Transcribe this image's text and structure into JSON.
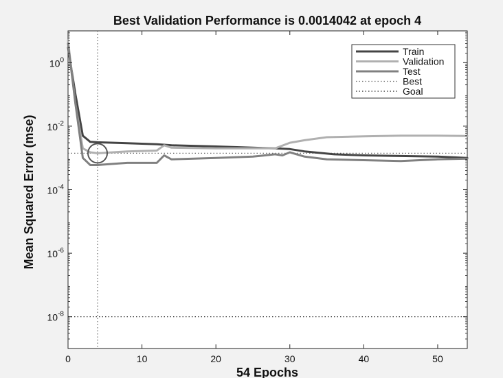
{
  "chart_data": {
    "type": "line",
    "title": "Best Validation Performance is 0.0014042 at epoch 4",
    "xlabel": "54 Epochs",
    "ylabel": "Mean Squared Error  (mse)",
    "xlim": [
      0,
      54
    ],
    "ylim": [
      1e-09,
      10
    ],
    "yscale": "log",
    "xticks": [
      0,
      10,
      20,
      30,
      40,
      50
    ],
    "yticks": [
      {
        "value": 1,
        "base": "10",
        "exp": "0"
      },
      {
        "value": 0.01,
        "base": "10",
        "exp": "-2"
      },
      {
        "value": 0.0001,
        "base": "10",
        "exp": "-4"
      },
      {
        "value": 1e-06,
        "base": "10",
        "exp": "-6"
      },
      {
        "value": 1e-08,
        "base": "10",
        "exp": "-8"
      }
    ],
    "legend_position": "top-right",
    "series": [
      {
        "name": "Train",
        "color": "#444444",
        "style": "solid",
        "x": [
          0,
          1,
          2,
          3,
          4,
          8,
          12,
          14,
          20,
          25,
          28,
          30,
          32,
          36,
          40,
          45,
          50,
          54
        ],
        "y": [
          3,
          0.1,
          0.005,
          0.0032,
          0.0031,
          0.0029,
          0.0027,
          0.0025,
          0.0023,
          0.0021,
          0.002,
          0.0019,
          0.0016,
          0.0013,
          0.0012,
          0.00115,
          0.0011,
          0.001
        ]
      },
      {
        "name": "Validation",
        "color": "#b0b0b0",
        "style": "solid",
        "x": [
          0,
          1,
          2,
          3,
          4,
          8,
          12,
          13,
          14,
          20,
          25,
          28,
          30,
          32,
          35,
          40,
          45,
          50,
          54
        ],
        "y": [
          5,
          0.05,
          0.002,
          0.0015,
          0.0014042,
          0.0016,
          0.0017,
          0.0025,
          0.0021,
          0.002,
          0.002,
          0.002,
          0.003,
          0.0036,
          0.0045,
          0.0048,
          0.005,
          0.005,
          0.0049
        ]
      },
      {
        "name": "Test",
        "color": "#808080",
        "style": "solid",
        "x": [
          0,
          1,
          2,
          3,
          4,
          8,
          12,
          13,
          14,
          20,
          25,
          28,
          29,
          30,
          32,
          35,
          40,
          45,
          50,
          54
        ],
        "y": [
          4,
          0.05,
          0.001,
          0.0006,
          0.0006,
          0.0007,
          0.0007,
          0.0012,
          0.0009,
          0.001,
          0.0011,
          0.0013,
          0.0012,
          0.0015,
          0.0011,
          0.0009,
          0.00085,
          0.0008,
          0.0009,
          0.00095
        ]
      }
    ],
    "best": {
      "label": "Best",
      "epoch": 4,
      "value": 0.0014042,
      "color": "#666666"
    },
    "goal": {
      "label": "Goal",
      "value": 1e-08,
      "color": "#222222"
    }
  }
}
